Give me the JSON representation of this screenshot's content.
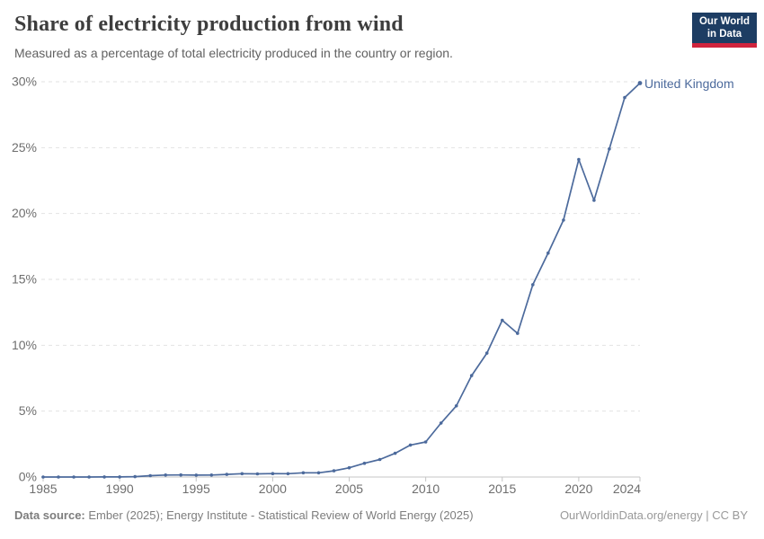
{
  "header": {
    "title": "Share of electricity production from wind",
    "subtitle": "Measured as a percentage of total electricity produced in the country or region."
  },
  "logo": {
    "line1": "Our World",
    "line2": "in Data",
    "bg_color": "#1d3d63",
    "accent_color": "#d0243d"
  },
  "chart_data": {
    "type": "line",
    "x": [
      1985,
      1986,
      1987,
      1988,
      1989,
      1990,
      1991,
      1992,
      1993,
      1994,
      1995,
      1996,
      1997,
      1998,
      1999,
      2000,
      2001,
      2002,
      2003,
      2004,
      2005,
      2006,
      2007,
      2008,
      2009,
      2010,
      2011,
      2012,
      2013,
      2014,
      2015,
      2016,
      2017,
      2018,
      2019,
      2020,
      2021,
      2022,
      2023,
      2024
    ],
    "series": [
      {
        "name": "United Kingdom",
        "color": "#4c6a9c",
        "values": [
          0,
          0,
          0,
          0,
          0.01,
          0.01,
          0.03,
          0.1,
          0.15,
          0.16,
          0.14,
          0.15,
          0.2,
          0.25,
          0.24,
          0.26,
          0.25,
          0.32,
          0.32,
          0.47,
          0.7,
          1.04,
          1.33,
          1.8,
          2.43,
          2.66,
          4.1,
          5.4,
          7.7,
          9.4,
          11.9,
          10.9,
          14.6,
          17.0,
          19.5,
          24.1,
          21.0,
          24.9,
          28.8,
          29.9
        ]
      }
    ],
    "title": "Share of electricity production from wind",
    "xlabel": "",
    "ylabel": "",
    "xlim": [
      1985,
      2024
    ],
    "ylim": [
      0,
      30
    ],
    "yticks": [
      0,
      5,
      10,
      15,
      20,
      25,
      30
    ],
    "ytick_suffix": "%",
    "xticks": [
      1985,
      1990,
      1995,
      2000,
      2005,
      2010,
      2015,
      2020,
      2024
    ],
    "grid": "horizontal-dashed",
    "legend_position": "end-of-line-label"
  },
  "footer": {
    "source_label": "Data source:",
    "source_text": " Ember (2025); Energy Institute - Statistical Review of World Energy (2025)",
    "right_text": "OurWorldinData.org/energy | CC BY"
  },
  "colors": {
    "background": "#ffffff",
    "grid": "#e2e2e2",
    "axis": "#c4c4c4",
    "tick_label": "#6e6e6e",
    "series": "#4c6a9c"
  }
}
